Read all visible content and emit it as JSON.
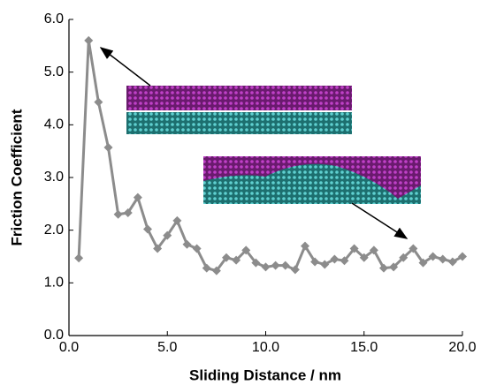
{
  "chart_data": {
    "type": "line",
    "x_label": "Sliding Distance / nm",
    "y_label": "Friction Coefficient",
    "x": [
      0.5,
      1.0,
      1.5,
      2.0,
      2.5,
      3.0,
      3.5,
      4.0,
      4.5,
      5.0,
      5.5,
      6.0,
      6.5,
      7.0,
      7.5,
      8.0,
      8.5,
      9.0,
      9.5,
      10.0,
      10.5,
      11.0,
      11.5,
      12.0,
      12.5,
      13.0,
      13.5,
      14.0,
      14.5,
      15.0,
      15.5,
      16.0,
      16.5,
      17.0,
      17.5,
      18.0,
      18.5,
      19.0,
      19.5,
      20.0
    ],
    "values": [
      1.47,
      5.6,
      4.43,
      3.57,
      2.3,
      2.33,
      2.62,
      2.02,
      1.65,
      1.9,
      2.18,
      1.73,
      1.65,
      1.28,
      1.23,
      1.48,
      1.43,
      1.62,
      1.38,
      1.3,
      1.33,
      1.33,
      1.25,
      1.7,
      1.4,
      1.35,
      1.45,
      1.42,
      1.65,
      1.48,
      1.62,
      1.28,
      1.3,
      1.48,
      1.65,
      1.38,
      1.5,
      1.45,
      1.4,
      1.5
    ],
    "color": "#8c8c8c",
    "xlim": [
      0,
      20
    ],
    "ylim": [
      0,
      6
    ],
    "xticks": [
      {
        "value": 0,
        "label": "0.0"
      },
      {
        "value": 5,
        "label": "5.0"
      },
      {
        "value": 10,
        "label": "10.0"
      },
      {
        "value": 15,
        "label": "15.0"
      },
      {
        "value": 20,
        "label": "20.0"
      }
    ],
    "yticks": [
      {
        "value": 0,
        "label": "0.0"
      },
      {
        "value": 1,
        "label": "1.0"
      },
      {
        "value": 2,
        "label": "2.0"
      },
      {
        "value": 3,
        "label": "3.0"
      },
      {
        "value": 4,
        "label": "4.0"
      },
      {
        "value": 5,
        "label": "5.0"
      },
      {
        "value": 6,
        "label": "6.0"
      }
    ]
  }
}
